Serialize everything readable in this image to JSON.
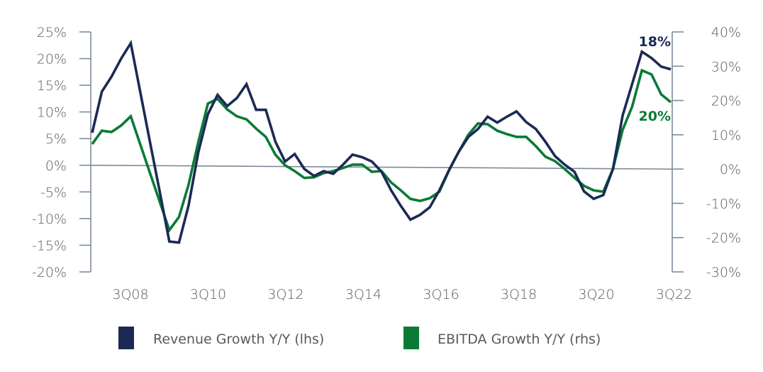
{
  "chart_data": {
    "type": "line",
    "title": "",
    "xlabel": "",
    "ylabel_left": "",
    "ylabel_right": "",
    "x_start": "3Q07",
    "x_end": "3Q22",
    "x_frequency": "quarterly",
    "x_tick_labels": [
      "3Q08",
      "3Q10",
      "3Q12",
      "3Q14",
      "3Q16",
      "3Q18",
      "3Q20",
      "3Q22"
    ],
    "y_left": {
      "range": [
        -20,
        25
      ],
      "ticks": [
        25,
        20,
        15,
        10,
        5,
        0,
        -5,
        -10,
        -15,
        -20
      ],
      "tick_labels": [
        "25%",
        "20%",
        "15%",
        "10%",
        "5%",
        "0%",
        "-5%",
        "-10%",
        "-15%",
        "-20%"
      ]
    },
    "y_right": {
      "range": [
        -30,
        40
      ],
      "ticks": [
        40,
        30,
        20,
        10,
        0,
        -10,
        -20,
        -30
      ],
      "tick_labels": [
        "40%",
        "30%",
        "20%",
        "10%",
        "0%",
        "-10%",
        "-20%",
        "-30%"
      ]
    },
    "grid": false,
    "legend_position": "bottom",
    "series": [
      {
        "name": "Revenue Growth Y/Y (lhs)",
        "axis": "left",
        "color": "#1b2a55",
        "end_label": "18%",
        "values": [
          6.1,
          13.8,
          16.6,
          20.0,
          22.9,
          13.6,
          4.3,
          -4.9,
          -14.3,
          -14.5,
          -7.5,
          2.4,
          9.6,
          13.2,
          11.1,
          12.6,
          15.2,
          10.4,
          10.4,
          4.4,
          0.7,
          2.1,
          -0.7,
          -2.0,
          -1.1,
          -1.6,
          0.1,
          2.0,
          1.5,
          0.7,
          -1.2,
          -4.7,
          -7.6,
          -10.2,
          -9.3,
          -7.9,
          -4.7,
          -0.9,
          2.5,
          5.3,
          6.8,
          9.1,
          8.0,
          9.1,
          10.1,
          8.1,
          6.8,
          4.4,
          1.7,
          0.1,
          -1.2,
          -4.9,
          -6.3,
          -5.6,
          -0.7,
          9.3,
          15.3,
          21.3,
          20.1,
          18.5,
          18.0
        ]
      },
      {
        "name": "EBITDA Growth Y/Y (rhs)",
        "axis": "right",
        "color": "#0a7a35",
        "end_label": "20%",
        "values": [
          7.3,
          11.2,
          10.8,
          12.7,
          15.4,
          7.1,
          -1.2,
          -9.5,
          -17.8,
          -14.0,
          -4.5,
          7.9,
          19.1,
          20.5,
          17.4,
          15.4,
          14.5,
          11.8,
          9.4,
          4.2,
          1.1,
          -0.6,
          -2.6,
          -2.4,
          -1.2,
          -0.6,
          0.3,
          1.3,
          1.3,
          -0.8,
          -0.6,
          -3.9,
          -6.2,
          -8.7,
          -9.3,
          -8.5,
          -6.6,
          -0.4,
          5.0,
          10.0,
          13.3,
          13.1,
          11.2,
          10.2,
          9.4,
          9.4,
          6.7,
          3.6,
          2.3,
          0.0,
          -2.5,
          -4.9,
          -6.2,
          -6.6,
          0.0,
          11.4,
          18.3,
          28.8,
          27.6,
          21.8,
          19.5
        ]
      }
    ],
    "colors": {
      "axis": "#7d8b99",
      "tick_text": "#555a60"
    }
  }
}
